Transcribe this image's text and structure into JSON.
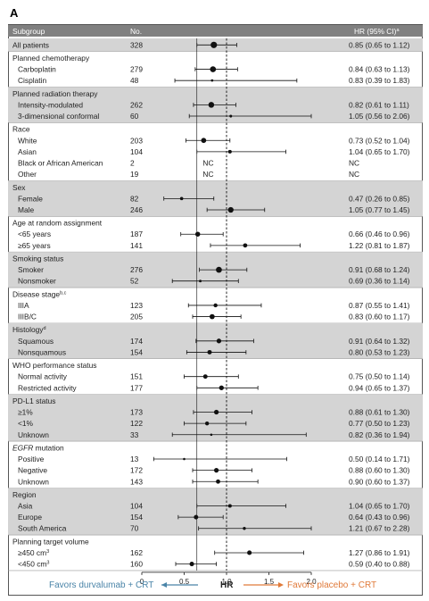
{
  "panel_label": "A",
  "header": {
    "subgroup": "Subgroup",
    "no": "No.",
    "hr": "HR (95% CI)",
    "hr_sup": "a"
  },
  "colors": {
    "header_bg": "#808080",
    "shade_bg": "#d4d4d4",
    "left_label": "#4a84a8",
    "right_label": "#e07a3a"
  },
  "chart_data": {
    "type": "forest",
    "x_axis": {
      "ticks": [
        0,
        0.5,
        1.0,
        1.5,
        2.0
      ],
      "tick_labels": [
        "0",
        "0.5",
        "1.0",
        "1.5",
        "2.0"
      ],
      "xlim": [
        0,
        2.0
      ],
      "reference_line": 1.0,
      "label": "HR"
    },
    "favor_left": "Favors durvalumab + CRT",
    "favor_right": "Favors placebo + CRT",
    "groups": [
      {
        "title": "All patients",
        "shaded": true,
        "n": "328",
        "hr": 0.85,
        "lo": 0.65,
        "hi": 1.12,
        "hr_text": "0.85 (0.65 to 1.12)",
        "rows": []
      },
      {
        "title": "Planned chemotherapy",
        "shaded": false,
        "rows": [
          {
            "label": "Carboplatin",
            "n": "279",
            "hr": 0.84,
            "lo": 0.63,
            "hi": 1.13,
            "hr_text": "0.84 (0.63 to 1.13)"
          },
          {
            "label": "Cisplatin",
            "n": "48",
            "hr": 0.83,
            "lo": 0.39,
            "hi": 1.83,
            "hr_text": "0.83 (0.39 to 1.83)"
          }
        ]
      },
      {
        "title": "Planned radiation therapy",
        "shaded": true,
        "rows": [
          {
            "label": "Intensity-modulated",
            "n": "262",
            "hr": 0.82,
            "lo": 0.61,
            "hi": 1.11,
            "hr_text": "0.82 (0.61 to 1.11)"
          },
          {
            "label": "3-dimensional conformal",
            "n": "60",
            "hr": 1.05,
            "lo": 0.56,
            "hi": 2.06,
            "hr_text": "1.05 (0.56 to 2.06)"
          }
        ]
      },
      {
        "title": "Race",
        "shaded": false,
        "rows": [
          {
            "label": "White",
            "n": "203",
            "hr": 0.73,
            "lo": 0.52,
            "hi": 1.04,
            "hr_text": "0.73 (0.52 to 1.04)"
          },
          {
            "label": "Asian",
            "n": "104",
            "hr": 1.04,
            "lo": 0.65,
            "hi": 1.7,
            "hr_text": "1.04 (0.65 to 1.70)"
          },
          {
            "label": "Black or African American",
            "n": "2",
            "nc": "NC",
            "hr_text": "NC"
          },
          {
            "label": "Other",
            "n": "19",
            "nc": "NC",
            "hr_text": "NC"
          }
        ]
      },
      {
        "title": "Sex",
        "shaded": true,
        "rows": [
          {
            "label": "Female",
            "n": "82",
            "hr": 0.47,
            "lo": 0.26,
            "hi": 0.85,
            "hr_text": "0.47 (0.26 to 0.85)"
          },
          {
            "label": "Male",
            "n": "246",
            "hr": 1.05,
            "lo": 0.77,
            "hi": 1.45,
            "hr_text": "1.05 (0.77 to 1.45)"
          }
        ]
      },
      {
        "title": "Age at random assignment",
        "shaded": false,
        "rows": [
          {
            "label": "<65 years",
            "n": "187",
            "hr": 0.66,
            "lo": 0.46,
            "hi": 0.96,
            "hr_text": "0.66 (0.46 to 0.96)"
          },
          {
            "label": "≥65 years",
            "n": "141",
            "hr": 1.22,
            "lo": 0.81,
            "hi": 1.87,
            "hr_text": "1.22 (0.81 to 1.87)"
          }
        ]
      },
      {
        "title": "Smoking status",
        "shaded": true,
        "rows": [
          {
            "label": "Smoker",
            "n": "276",
            "hr": 0.91,
            "lo": 0.68,
            "hi": 1.24,
            "hr_text": "0.91 (0.68 to 1.24)"
          },
          {
            "label": "Nonsmoker",
            "n": "52",
            "hr": 0.69,
            "lo": 0.36,
            "hi": 1.14,
            "hr_text": "0.69 (0.36 to 1.14)"
          }
        ]
      },
      {
        "title": "Disease stage",
        "title_sup": "b,c",
        "shaded": false,
        "rows": [
          {
            "label": "IIIA",
            "n": "123",
            "hr": 0.87,
            "lo": 0.55,
            "hi": 1.41,
            "hr_text": "0.87 (0.55 to 1.41)"
          },
          {
            "label": "IIIB/C",
            "n": "205",
            "hr": 0.83,
            "lo": 0.6,
            "hi": 1.17,
            "hr_text": "0.83 (0.60 to 1.17)"
          }
        ]
      },
      {
        "title": "Histology",
        "title_sup": "d",
        "shaded": true,
        "rows": [
          {
            "label": "Squamous",
            "n": "174",
            "hr": 0.91,
            "lo": 0.64,
            "hi": 1.32,
            "hr_text": "0.91 (0.64 to 1.32)"
          },
          {
            "label": "Nonsquamous",
            "n": "154",
            "hr": 0.8,
            "lo": 0.53,
            "hi": 1.23,
            "hr_text": "0.80 (0.53 to 1.23)"
          }
        ]
      },
      {
        "title": "WHO performance status",
        "shaded": false,
        "rows": [
          {
            "label": "Normal activity",
            "n": "151",
            "hr": 0.75,
            "lo": 0.5,
            "hi": 1.14,
            "hr_text": "0.75 (0.50 to 1.14)"
          },
          {
            "label": "Restricted activity",
            "n": "177",
            "hr": 0.94,
            "lo": 0.65,
            "hi": 1.37,
            "hr_text": "0.94 (0.65 to 1.37)"
          }
        ]
      },
      {
        "title": "PD-L1 status",
        "shaded": true,
        "rows": [
          {
            "label": "≥1%",
            "n": "173",
            "hr": 0.88,
            "lo": 0.61,
            "hi": 1.3,
            "hr_text": "0.88 (0.61 to 1.30)"
          },
          {
            "label": "<1%",
            "n": "122",
            "hr": 0.77,
            "lo": 0.5,
            "hi": 1.23,
            "hr_text": "0.77 (0.50 to 1.23)"
          },
          {
            "label": "Unknown",
            "n": "33",
            "hr": 0.82,
            "lo": 0.36,
            "hi": 1.94,
            "hr_text": "0.82 (0.36 to 1.94)"
          }
        ]
      },
      {
        "title": "EGFR",
        "title_rest": " mutation",
        "title_italic": true,
        "shaded": false,
        "rows": [
          {
            "label": "Positive",
            "n": "13",
            "hr": 0.5,
            "lo": 0.14,
            "hi": 1.71,
            "hr_text": "0.50 (0.14 to 1.71)"
          },
          {
            "label": "Negative",
            "n": "172",
            "hr": 0.88,
            "lo": 0.6,
            "hi": 1.3,
            "hr_text": "0.88 (0.60 to 1.30)"
          },
          {
            "label": "Unknown",
            "n": "143",
            "hr": 0.9,
            "lo": 0.6,
            "hi": 1.37,
            "hr_text": "0.90 (0.60 to 1.37)"
          }
        ]
      },
      {
        "title": "Region",
        "shaded": true,
        "rows": [
          {
            "label": "Asia",
            "n": "104",
            "hr": 1.04,
            "lo": 0.65,
            "hi": 1.7,
            "hr_text": "1.04 (0.65 to 1.70)"
          },
          {
            "label": "Europe",
            "n": "154",
            "hr": 0.64,
            "lo": 0.43,
            "hi": 0.96,
            "hr_text": "0.64 (0.43 to 0.96)"
          },
          {
            "label": "South America",
            "n": "70",
            "hr": 1.21,
            "lo": 0.67,
            "hi": 2.28,
            "hr_text": "1.21 (0.67 to 2.28)"
          }
        ]
      },
      {
        "title": "Planning target volume",
        "shaded": false,
        "rows": [
          {
            "label": "≥450 cm",
            "label_sup": "3",
            "n": "162",
            "hr": 1.27,
            "lo": 0.86,
            "hi": 1.91,
            "hr_text": "1.27 (0.86 to 1.91)"
          },
          {
            "label": "<450 cm",
            "label_sup": "3",
            "n": "160",
            "hr": 0.59,
            "lo": 0.4,
            "hi": 0.88,
            "hr_text": "0.59 (0.40 to 0.88)"
          }
        ]
      }
    ]
  }
}
